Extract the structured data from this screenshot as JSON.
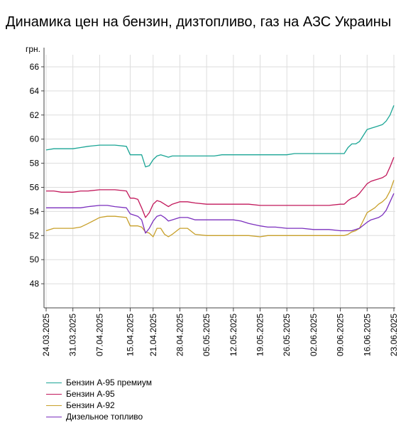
{
  "title": "Динамика цен на бензин, дизтопливо, газ на АЗС Украины",
  "chart_data": {
    "type": "line",
    "title": "Динамика цен на бензин, дизтопливо, газ на АЗС Украины",
    "ylabel": "грн.",
    "xlabel": "",
    "ylim": [
      46,
      67
    ],
    "yticks": [
      48,
      50,
      52,
      54,
      56,
      58,
      60,
      62,
      64,
      66
    ],
    "x_tick_labels": [
      "24.03.2025",
      "31.03.2025",
      "07.04.2025",
      "15.04.2025",
      "21.04.2025",
      "28.04.2025",
      "05.05.2025",
      "12.05.2025",
      "19.05.2025",
      "26.05.2025",
      "02.06.2025",
      "09.06.2025",
      "16.06.2025",
      "23.06.2025"
    ],
    "x": [
      "24.03.2025",
      "26.03.2025",
      "28.03.2025",
      "31.03.2025",
      "02.04.2025",
      "04.04.2025",
      "07.04.2025",
      "09.04.2025",
      "11.04.2025",
      "14.04.2025",
      "15.04.2025",
      "16.04.2025",
      "17.04.2025",
      "18.04.2025",
      "19.04.2025",
      "20.04.2025",
      "21.04.2025",
      "22.04.2025",
      "23.04.2025",
      "24.04.2025",
      "25.04.2025",
      "26.04.2025",
      "28.04.2025",
      "30.04.2025",
      "02.05.2025",
      "05.05.2025",
      "07.05.2025",
      "09.05.2025",
      "12.05.2025",
      "14.05.2025",
      "16.05.2025",
      "19.05.2025",
      "21.05.2025",
      "23.05.2025",
      "26.05.2025",
      "28.05.2025",
      "30.05.2025",
      "02.06.2025",
      "04.06.2025",
      "06.06.2025",
      "09.06.2025",
      "10.06.2025",
      "11.06.2025",
      "12.06.2025",
      "13.06.2025",
      "14.06.2025",
      "16.06.2025",
      "17.06.2025",
      "18.06.2025",
      "19.06.2025",
      "20.06.2025",
      "21.06.2025",
      "22.06.2025",
      "23.06.2025"
    ],
    "series": [
      {
        "name": "Бензин А-95 премиум",
        "color": "#1aa595",
        "values": [
          59.1,
          59.2,
          59.2,
          59.2,
          59.3,
          59.4,
          59.5,
          59.5,
          59.5,
          59.4,
          58.7,
          58.7,
          58.7,
          58.7,
          57.7,
          57.8,
          58.3,
          58.6,
          58.7,
          58.6,
          58.5,
          58.6,
          58.6,
          58.6,
          58.6,
          58.6,
          58.6,
          58.7,
          58.7,
          58.7,
          58.7,
          58.7,
          58.7,
          58.7,
          58.7,
          58.8,
          58.8,
          58.8,
          58.8,
          58.8,
          58.8,
          58.8,
          59.3,
          59.6,
          59.6,
          59.8,
          60.8,
          60.9,
          61.0,
          61.1,
          61.2,
          61.5,
          62.0,
          62.8
        ]
      },
      {
        "name": "Бензин А-95",
        "color": "#c2185b",
        "values": [
          55.7,
          55.7,
          55.6,
          55.6,
          55.7,
          55.7,
          55.8,
          55.8,
          55.8,
          55.7,
          55.1,
          55.1,
          55.0,
          54.3,
          53.5,
          53.9,
          54.6,
          54.9,
          54.8,
          54.6,
          54.4,
          54.6,
          54.8,
          54.8,
          54.7,
          54.6,
          54.6,
          54.6,
          54.6,
          54.6,
          54.6,
          54.5,
          54.5,
          54.5,
          54.5,
          54.5,
          54.5,
          54.5,
          54.5,
          54.5,
          54.6,
          54.6,
          54.9,
          55.1,
          55.2,
          55.5,
          56.3,
          56.5,
          56.6,
          56.7,
          56.8,
          57.0,
          57.7,
          58.5
        ]
      },
      {
        "name": "Бензин А-92",
        "color": "#c8a02a",
        "values": [
          52.4,
          52.6,
          52.6,
          52.6,
          52.7,
          53.0,
          53.5,
          53.6,
          53.6,
          53.5,
          52.8,
          52.8,
          52.8,
          52.7,
          52.3,
          52.2,
          51.9,
          52.6,
          52.6,
          52.1,
          51.9,
          52.1,
          52.6,
          52.6,
          52.1,
          52.0,
          52.0,
          52.0,
          52.0,
          52.0,
          52.0,
          51.9,
          52.0,
          52.0,
          52.0,
          52.0,
          52.0,
          52.0,
          52.0,
          52.0,
          52.0,
          52.0,
          52.1,
          52.3,
          52.4,
          52.6,
          53.9,
          54.1,
          54.3,
          54.6,
          54.8,
          55.1,
          55.7,
          56.6
        ]
      },
      {
        "name": "Дизельное топливо",
        "color": "#7b2fbe",
        "values": [
          54.3,
          54.3,
          54.3,
          54.3,
          54.3,
          54.4,
          54.5,
          54.5,
          54.4,
          54.3,
          53.8,
          53.7,
          53.6,
          53.3,
          52.2,
          52.6,
          53.2,
          53.6,
          53.7,
          53.5,
          53.2,
          53.3,
          53.5,
          53.5,
          53.3,
          53.3,
          53.3,
          53.3,
          53.3,
          53.2,
          53.0,
          52.8,
          52.7,
          52.7,
          52.6,
          52.6,
          52.6,
          52.5,
          52.5,
          52.5,
          52.4,
          52.4,
          52.4,
          52.4,
          52.5,
          52.6,
          53.1,
          53.3,
          53.4,
          53.5,
          53.7,
          54.1,
          54.8,
          55.5
        ]
      }
    ],
    "legend_position": "bottom-left",
    "grid": true
  }
}
